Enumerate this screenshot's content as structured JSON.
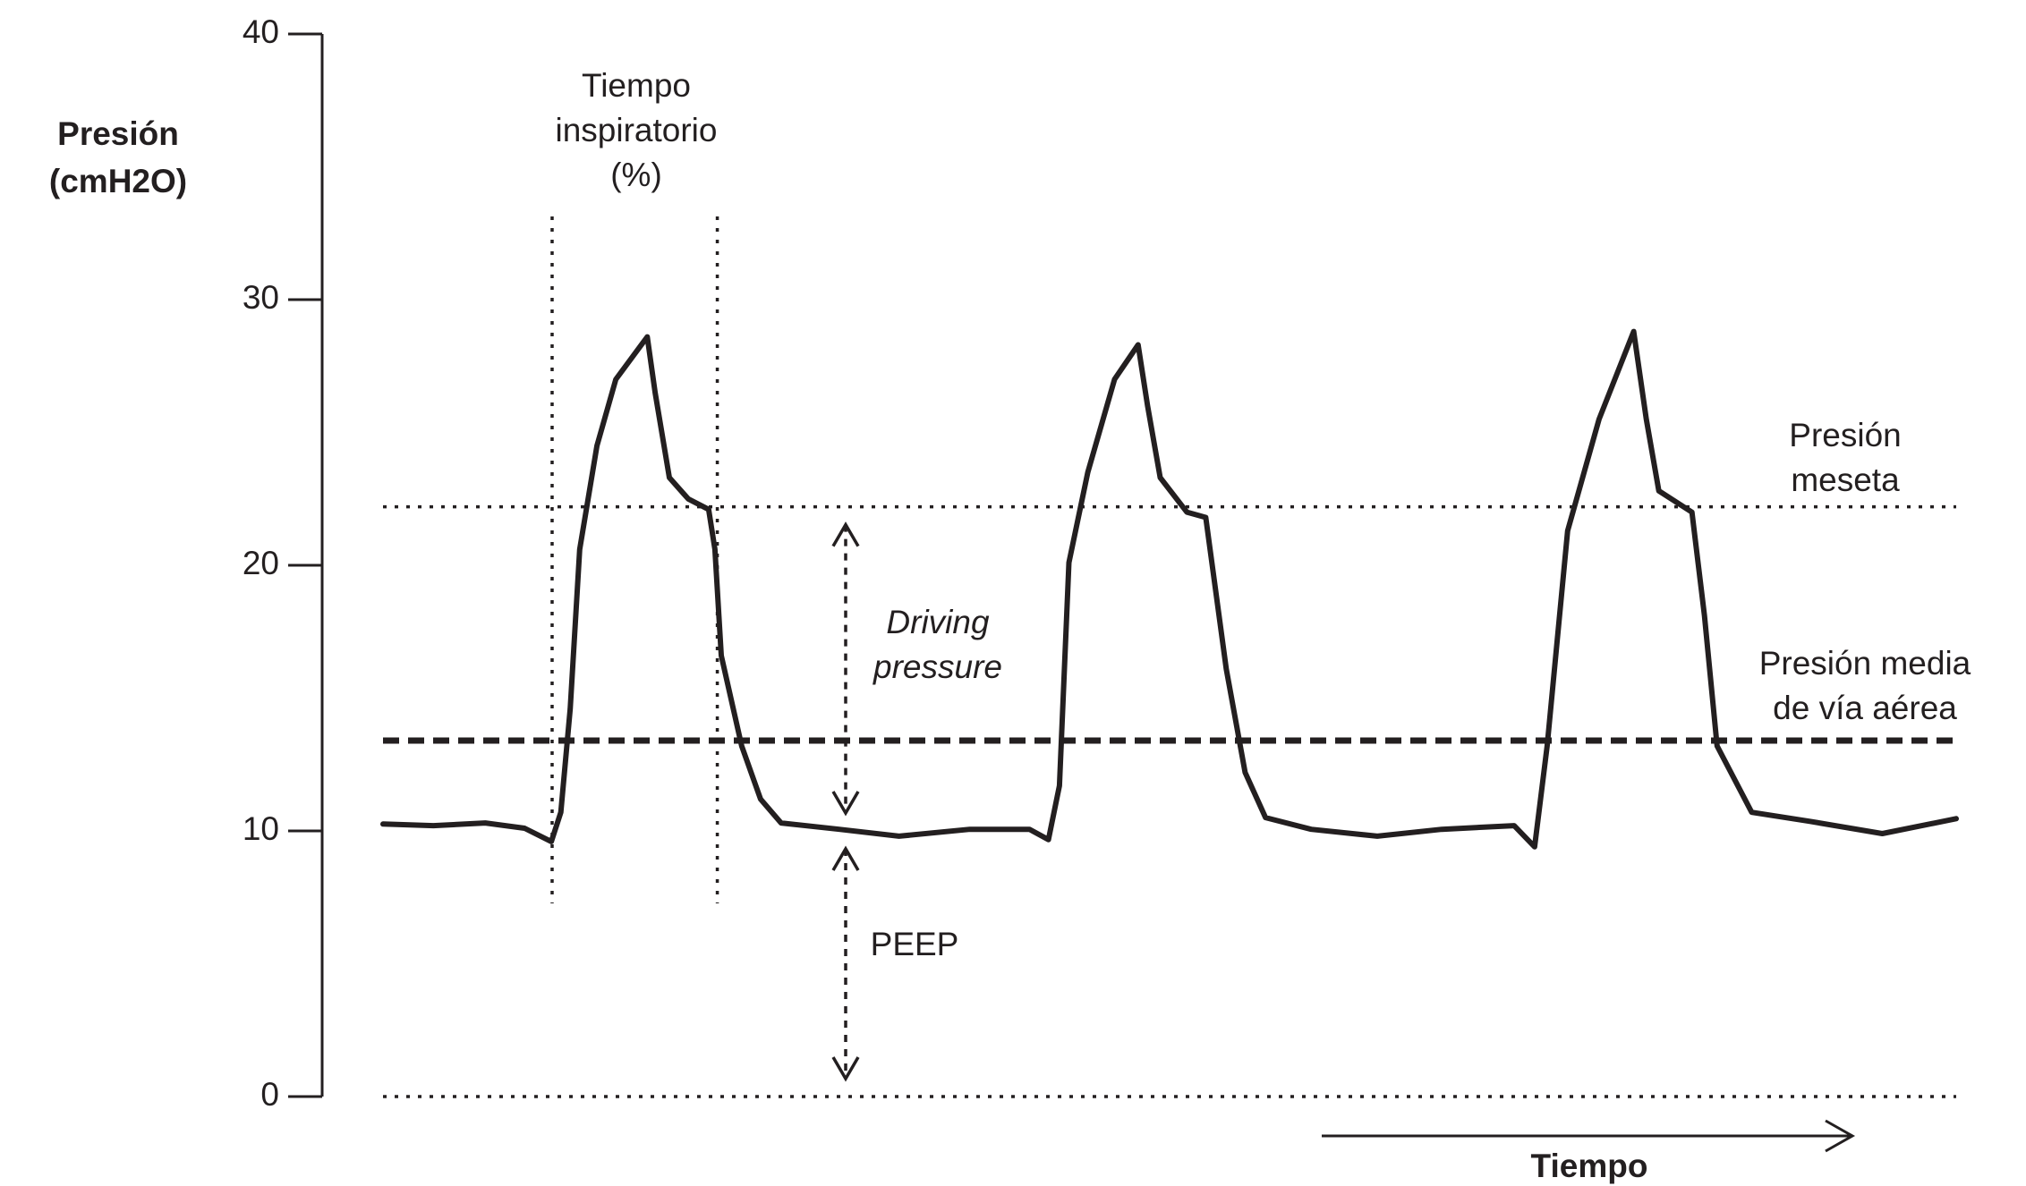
{
  "chart_data": {
    "type": "line",
    "ylabel": [
      "Presión",
      "(cmH2O)"
    ],
    "xlabel": "Tiempo",
    "ylim": [
      0,
      40
    ],
    "yticks": [
      0,
      10,
      20,
      30,
      40
    ],
    "xlim": [
      0,
      100
    ],
    "color": "#231f20",
    "x": [
      0,
      3.2,
      6.5,
      9.0,
      10.7,
      11.3,
      11.9,
      12.5,
      13.6,
      14.8,
      16.8,
      17.3,
      18.2,
      19.4,
      20.7,
      21.1,
      21.5,
      22.8,
      24.0,
      25.3,
      29.0,
      32.8,
      37.3,
      41.1,
      42.3,
      43.0,
      43.6,
      44.8,
      46.5,
      48.0,
      48.6,
      49.4,
      51.1,
      52.3,
      53.6,
      54.8,
      56.1,
      59.0,
      63.2,
      67.3,
      71.9,
      73.2,
      74.0,
      75.3,
      77.3,
      79.5,
      80.3,
      81.1,
      83.2,
      84.0,
      84.8,
      87.0,
      90.7,
      95.3,
      100
    ],
    "values": [
      10.26,
      10.2,
      10.3,
      10.1,
      9.6,
      10.7,
      14.6,
      20.6,
      24.5,
      27.0,
      28.6,
      26.5,
      23.3,
      22.5,
      22.1,
      20.6,
      16.6,
      13.2,
      11.2,
      10.3,
      10.06,
      9.8,
      10.06,
      10.06,
      9.67,
      11.7,
      20.1,
      23.5,
      27.0,
      28.3,
      26.0,
      23.3,
      22.0,
      21.8,
      16.1,
      12.2,
      10.5,
      10.06,
      9.8,
      10.06,
      10.2,
      9.4,
      13.2,
      21.3,
      25.5,
      28.8,
      25.5,
      22.8,
      22.0,
      18.1,
      13.2,
      10.7,
      10.36,
      9.9,
      10.46
    ],
    "reference_lines": [
      {
        "label": [
          "Presión",
          "meseta"
        ],
        "value": 22.2,
        "style": "dotted"
      },
      {
        "label": [
          "Presión media",
          "de vía aérea"
        ],
        "value": 13.4,
        "style": "dashed"
      },
      {
        "value": 0,
        "style": "dotted"
      }
    ],
    "ranges": [
      {
        "label": [
          "Driving",
          "pressure"
        ],
        "from": 10,
        "to": 22.2,
        "italic": true
      },
      {
        "label": [
          "PEEP"
        ],
        "from": 0,
        "to": 10,
        "italic": false
      }
    ],
    "time_marks": {
      "label": [
        "Tiempo",
        "inspiratorio",
        "(%)"
      ],
      "x": [
        10.75,
        21.25
      ]
    }
  }
}
